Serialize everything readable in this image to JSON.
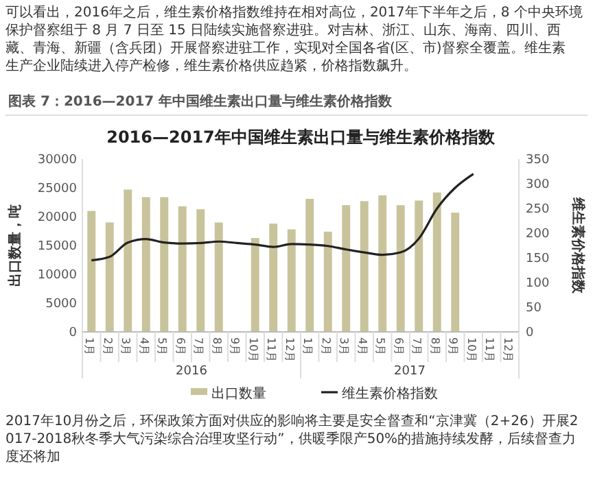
{
  "chart_data": {
    "type": "bar",
    "title": "2016—2017年中国维生素出口量与维生素价格指数",
    "subtitle": "图表 7：2016—2017 年中国维生素出口量与维生素价格指数",
    "categories": [
      "1月",
      "2月",
      "3月",
      "4月",
      "5月",
      "6月",
      "7月",
      "8月",
      "9月",
      "10月",
      "11月",
      "12月",
      "1月",
      "2月",
      "3月",
      "4月",
      "5月",
      "6月",
      "7月",
      "8月",
      "9月",
      "10月",
      "11月",
      "12月"
    ],
    "series": [
      {
        "name": "出口数量",
        "color": "#c9c39b",
        "values": [
          21000,
          19000,
          24700,
          23400,
          23400,
          21800,
          21300,
          19000,
          null,
          16300,
          18800,
          17800,
          23100,
          17400,
          22000,
          22700,
          23700,
          22000,
          22800,
          24200,
          20700,
          null,
          null,
          null
        ]
      },
      {
        "name": "维生素价格指数",
        "type": "line",
        "axis": "y2",
        "color": "#222222",
        "values": [
          145,
          152,
          181,
          188,
          181,
          179,
          180,
          183,
          180,
          177,
          172,
          178,
          177,
          174,
          167,
          161,
          156,
          161,
          189,
          250,
          292,
          320,
          null,
          null
        ]
      }
    ],
    "ylabel": "出口数量，吨",
    "y2label": "维生素价格指数",
    "ylim": [
      0,
      30000
    ],
    "yticks": [
      0,
      5000,
      10000,
      15000,
      20000,
      25000,
      30000
    ],
    "y2lim": [
      0,
      350
    ],
    "y2ticks": [
      0,
      50,
      100,
      150,
      200,
      250,
      300,
      350
    ],
    "legend": "bottom",
    "grid": false,
    "annotations": [
      "2016",
      "2017",
      "可以看出，2016年之后，维生素价格指数维持在相对高位，2017年下半年之后，8 个中央环境保护督察组于 8 月 7 日至 15 日陆续实施督察进驻。对吉林、浙江、山东、海南、四川、西藏、青海、新疆（含兵团）开展督察进驻工作，实现对全国各省(区、市)督察全覆盖。维生素生产企业陆续进入停产检修，维生素价格供应趋紧，价格指数飙升。",
      "2017年10月份之后，环保政策方面对供应的影响将主要是安全督查和“京津冀（2+26）开展2017-2018秋冬季大气污染综合治理攻坚行动”，供暖季限产50%的措施持续发酵，后续督查力度还将加"
    ]
  }
}
